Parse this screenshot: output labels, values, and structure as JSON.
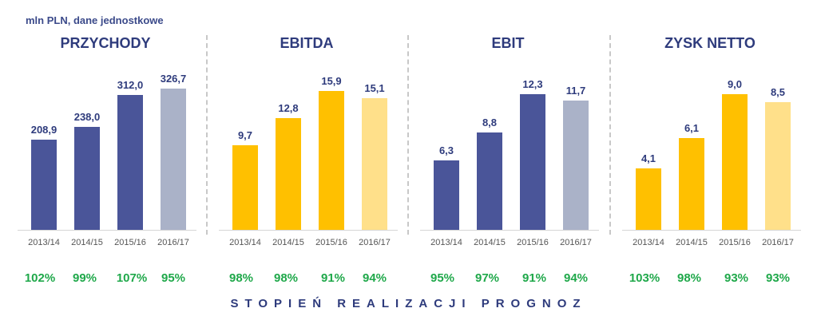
{
  "unit_label": "mln PLN, dane jednostkowe",
  "footer_label": "STOPIEŃ REALIZACJI PROGNOZ",
  "colors": {
    "navy": "#4a5599",
    "navy_light": "#aab2c8",
    "yellow": "#ffc000",
    "yellow_light": "#ffe08a",
    "green": "#1fa84a",
    "title": "#2e3b7c"
  },
  "chart_data": [
    {
      "type": "bar",
      "title": "PRZYCHODY",
      "categories": [
        "2013/14",
        "2014/15",
        "2015/16",
        "2016/17"
      ],
      "values": [
        208.9,
        238.0,
        312.0,
        326.7
      ],
      "value_labels": [
        "208,9",
        "238,0",
        "312,0",
        "326,7"
      ],
      "realization": [
        "102%",
        "99%",
        "107%",
        "95%"
      ],
      "palette": "navy",
      "ylim": [
        0,
        424
      ]
    },
    {
      "type": "bar",
      "title": "EBITDA",
      "categories": [
        "2013/14",
        "2014/15",
        "2015/16",
        "2016/17"
      ],
      "values": [
        9.7,
        12.8,
        15.9,
        15.1
      ],
      "value_labels": [
        "9,7",
        "12,8",
        "15,9",
        "15,1"
      ],
      "realization": [
        "98%",
        "98%",
        "91%",
        "94%"
      ],
      "palette": "yellow",
      "ylim": [
        0,
        21
      ]
    },
    {
      "type": "bar",
      "title": "EBIT",
      "categories": [
        "2013/14",
        "2014/15",
        "2015/16",
        "2016/17"
      ],
      "values": [
        6.3,
        8.8,
        12.3,
        11.7
      ],
      "value_labels": [
        "6,3",
        "8,8",
        "12,3",
        "11,7"
      ],
      "realization": [
        "95%",
        "97%",
        "91%",
        "94%"
      ],
      "palette": "navy",
      "ylim": [
        0,
        16.6
      ]
    },
    {
      "type": "bar",
      "title": "ZYSK NETTO",
      "categories": [
        "2013/14",
        "2014/15",
        "2015/16",
        "2016/17"
      ],
      "values": [
        4.1,
        6.1,
        9.0,
        8.5
      ],
      "value_labels": [
        "4,1",
        "6,1",
        "9,0",
        "8,5"
      ],
      "realization": [
        "103%",
        "98%",
        "93%",
        "93%"
      ],
      "palette": "yellow",
      "ylim": [
        0,
        12.2
      ]
    }
  ]
}
